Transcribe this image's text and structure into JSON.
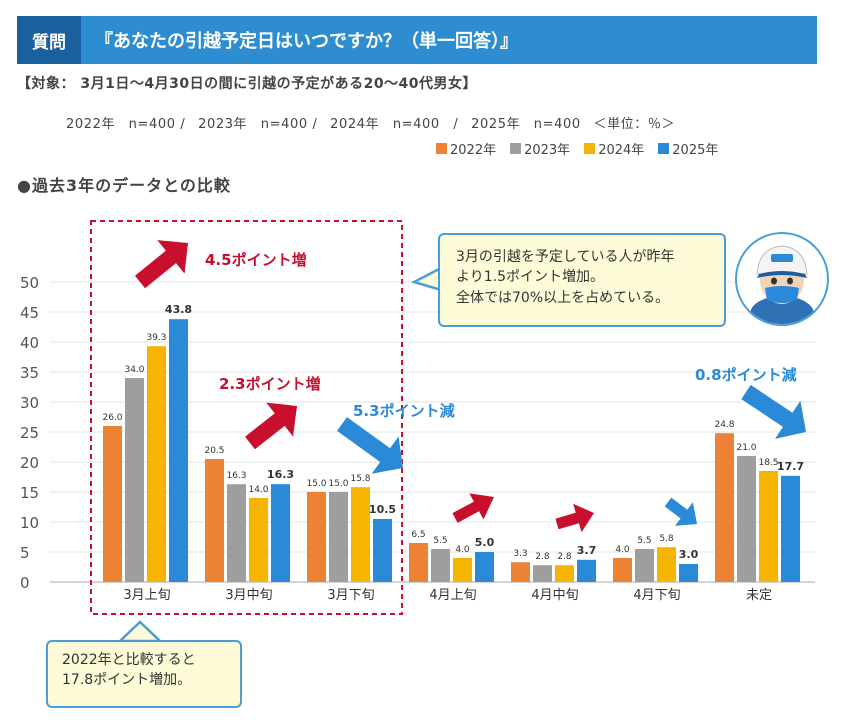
{
  "header": {
    "tag": "質問",
    "question": "『あなたの引越予定日はいつですか？（単一回答）』"
  },
  "target_text": "【対象： 3月1日～4月30日の間に引越の予定がある20～40代男女】",
  "samples": [
    "2022年　n=400 /",
    "2023年　n=400 /",
    "2024年　n=400　/",
    "2025年　n=400",
    "＜単位：％＞"
  ],
  "subtitle": "●過去3年のデータとの比較",
  "colors": {
    "y2022": "#ec8233",
    "y2023": "#9e9e9e",
    "y2024": "#f4b400",
    "y2025": "#2b8ad8",
    "red_arrow": "#c8102e",
    "blue_arrow": "#2b8ad8",
    "red_text": "#c8102e",
    "blue_text": "#2b8ad8"
  },
  "chart_data": {
    "type": "bar",
    "title": "過去3年のデータとの比較",
    "xlabel": "",
    "ylabel": "",
    "ylim": [
      0,
      50
    ],
    "yticks": [
      0,
      5,
      10,
      15,
      20,
      25,
      30,
      35,
      40,
      45,
      50
    ],
    "grid": true,
    "legend_position": "top-right",
    "categories": [
      "3月上旬",
      "3月中旬",
      "3月下旬",
      "4月上旬",
      "4月中旬",
      "4月下旬",
      "未定"
    ],
    "series": [
      {
        "name": "2022年",
        "values": [
          26.0,
          20.5,
          15.0,
          6.5,
          3.3,
          4.0,
          24.8
        ]
      },
      {
        "name": "2023年",
        "values": [
          34.0,
          16.3,
          15.0,
          5.5,
          2.8,
          5.5,
          21.0
        ]
      },
      {
        "name": "2024年",
        "values": [
          39.3,
          14.0,
          15.8,
          4.0,
          2.8,
          5.8,
          18.5
        ]
      },
      {
        "name": "2025年",
        "values": [
          43.8,
          16.3,
          10.5,
          5.0,
          3.7,
          3.0,
          17.7
        ]
      }
    ],
    "value_labels": [
      [
        "26.0",
        "20.5",
        "15.0",
        "6.5",
        "3.3",
        "4.0",
        "24.8"
      ],
      [
        "34.0",
        "16.3",
        "15.0",
        "5.5",
        "2.8",
        "5.5",
        "21.0"
      ],
      [
        "39.3",
        "14.0",
        "15.8",
        "4.0",
        "2.8",
        "5.8",
        "18.5"
      ],
      [
        "43.8",
        "16.3",
        "10.5",
        "5.0",
        "3.7",
        "3.0",
        "17.7"
      ]
    ],
    "annotations": [
      {
        "text": "4.5ポイント増",
        "color": "red"
      },
      {
        "text": "2.3ポイント増",
        "color": "red"
      },
      {
        "text": "5.3ポイント減",
        "color": "blue"
      },
      {
        "text": "0.8ポイント減",
        "color": "blue"
      }
    ]
  },
  "callouts": {
    "top": [
      "3月の引越を予定している人が昨年",
      "より1.5ポイント増加。",
      "全体では70%以上を占めている。"
    ],
    "bottom": [
      "2022年と比較すると",
      "17.8ポイント増加。"
    ]
  }
}
